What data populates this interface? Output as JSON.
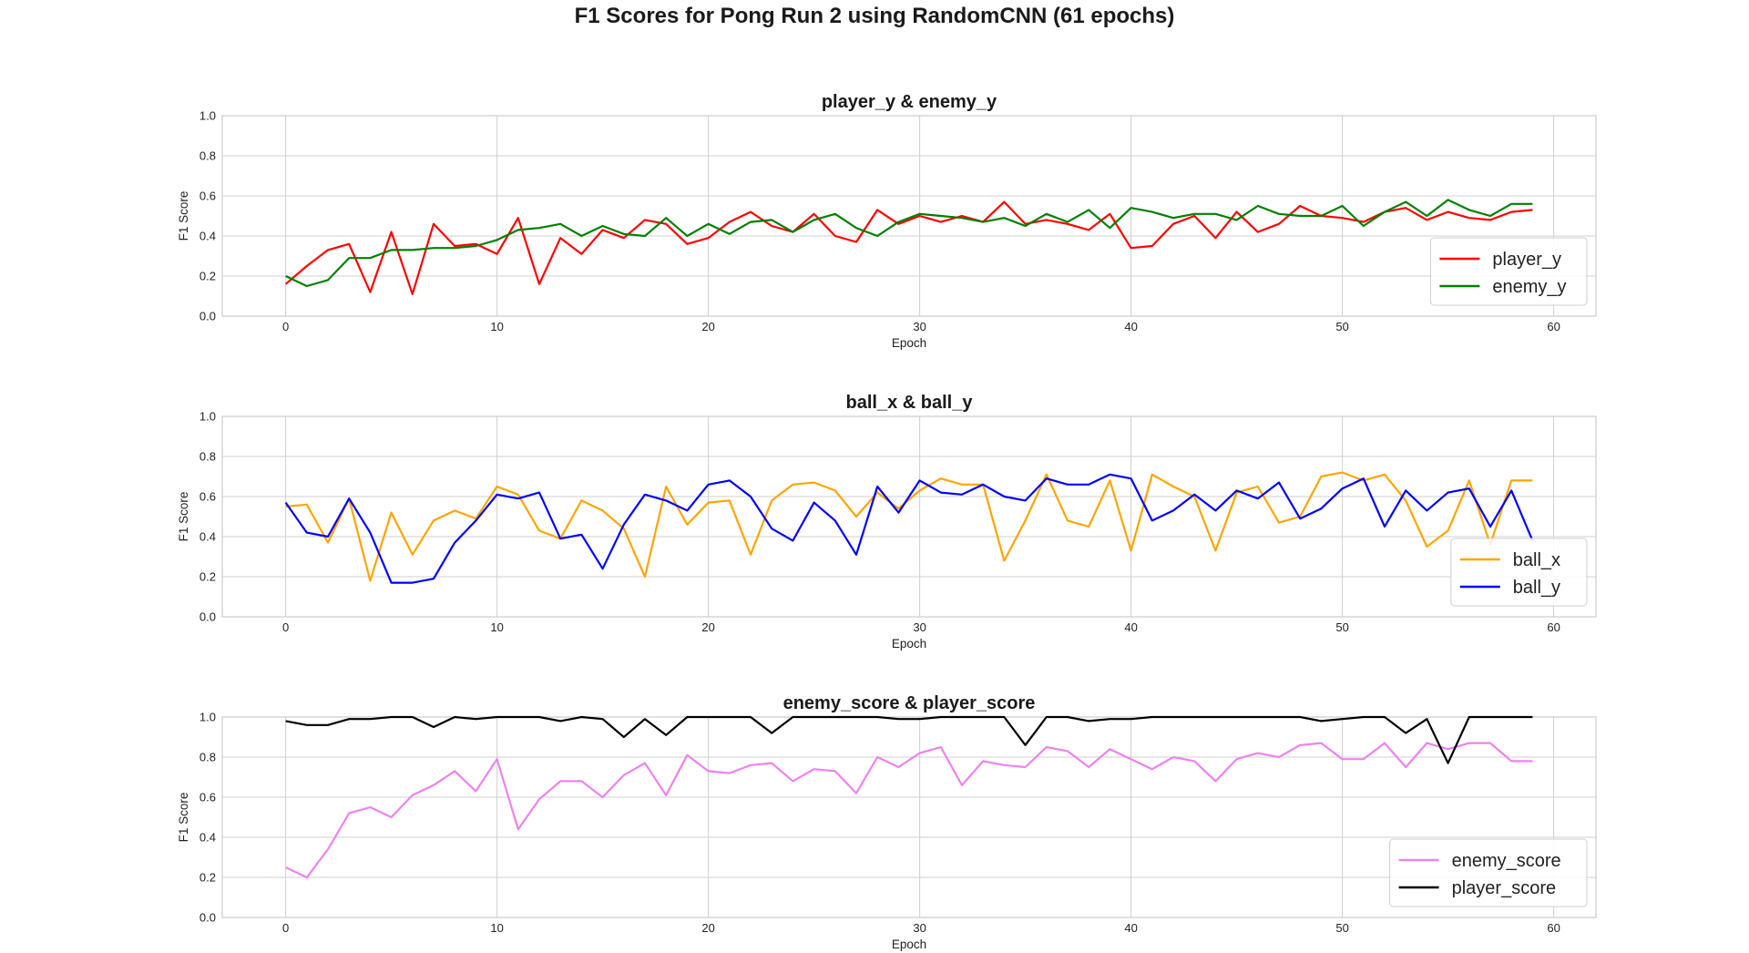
{
  "figure": {
    "suptitle": "F1 Scores for Pong Run 2 using RandomCNN (61 epochs)"
  },
  "chart_data": [
    {
      "type": "line",
      "title": "player_y & enemy_y",
      "xlabel": "Epoch",
      "ylabel": "F1 Score",
      "xlim": [
        -3,
        62
      ],
      "ylim": [
        0,
        1
      ],
      "xticks": [
        "0",
        "10",
        "20",
        "30",
        "40",
        "50",
        "60"
      ],
      "yticks": [
        "0.0",
        "0.2",
        "0.4",
        "0.6",
        "0.8",
        "1.0"
      ],
      "grid": true,
      "legend": "lower right",
      "series": [
        {
          "name": "player_y",
          "color": "#ff0000",
          "values": [
            0.16,
            0.25,
            0.33,
            0.36,
            0.12,
            0.42,
            0.11,
            0.46,
            0.35,
            0.36,
            0.31,
            0.49,
            0.16,
            0.39,
            0.31,
            0.43,
            0.39,
            0.48,
            0.46,
            0.36,
            0.39,
            0.47,
            0.52,
            0.45,
            0.42,
            0.51,
            0.4,
            0.37,
            0.53,
            0.46,
            0.5,
            0.47,
            0.5,
            0.47,
            0.57,
            0.46,
            0.48,
            0.46,
            0.43,
            0.51,
            0.34,
            0.35,
            0.46,
            0.5,
            0.39,
            0.52,
            0.42,
            0.46,
            0.55,
            0.5,
            0.49,
            0.47,
            0.52,
            0.54,
            0.48,
            0.52,
            0.49,
            0.48,
            0.52,
            0.53
          ]
        },
        {
          "name": "enemy_y",
          "color": "#008000",
          "values": [
            0.2,
            0.15,
            0.18,
            0.29,
            0.29,
            0.33,
            0.33,
            0.34,
            0.34,
            0.35,
            0.38,
            0.43,
            0.44,
            0.46,
            0.4,
            0.45,
            0.41,
            0.4,
            0.49,
            0.4,
            0.46,
            0.41,
            0.47,
            0.48,
            0.42,
            0.48,
            0.51,
            0.44,
            0.4,
            0.47,
            0.51,
            0.5,
            0.49,
            0.47,
            0.49,
            0.45,
            0.51,
            0.47,
            0.53,
            0.44,
            0.54,
            0.52,
            0.49,
            0.51,
            0.51,
            0.48,
            0.55,
            0.51,
            0.5,
            0.5,
            0.55,
            0.45,
            0.52,
            0.57,
            0.5,
            0.58,
            0.53,
            0.5,
            0.56,
            0.56
          ]
        }
      ]
    },
    {
      "type": "line",
      "title": "ball_x & ball_y",
      "xlabel": "Epoch",
      "ylabel": "F1 Score",
      "xlim": [
        -3,
        62
      ],
      "ylim": [
        0,
        1
      ],
      "xticks": [
        "0",
        "10",
        "20",
        "30",
        "40",
        "50",
        "60"
      ],
      "yticks": [
        "0.0",
        "0.2",
        "0.4",
        "0.6",
        "0.8",
        "1.0"
      ],
      "grid": true,
      "legend": "lower right",
      "series": [
        {
          "name": "ball_x",
          "color": "#ffa500",
          "values": [
            0.55,
            0.56,
            0.37,
            0.59,
            0.18,
            0.52,
            0.31,
            0.48,
            0.53,
            0.49,
            0.65,
            0.61,
            0.43,
            0.39,
            0.58,
            0.53,
            0.44,
            0.2,
            0.65,
            0.46,
            0.57,
            0.58,
            0.31,
            0.58,
            0.66,
            0.67,
            0.63,
            0.5,
            0.62,
            0.54,
            0.63,
            0.69,
            0.66,
            0.66,
            0.28,
            0.48,
            0.71,
            0.48,
            0.45,
            0.68,
            0.33,
            0.71,
            0.65,
            0.6,
            0.33,
            0.62,
            0.65,
            0.47,
            0.5,
            0.7,
            0.72,
            0.68,
            0.71,
            0.58,
            0.35,
            0.43,
            0.68,
            0.36,
            0.68,
            0.68
          ]
        },
        {
          "name": "ball_y",
          "color": "#0000ff",
          "values": [
            0.57,
            0.42,
            0.4,
            0.59,
            0.42,
            0.17,
            0.17,
            0.19,
            0.37,
            0.48,
            0.61,
            0.59,
            0.62,
            0.39,
            0.41,
            0.24,
            0.46,
            0.61,
            0.58,
            0.53,
            0.66,
            0.68,
            0.6,
            0.44,
            0.38,
            0.57,
            0.48,
            0.31,
            0.65,
            0.52,
            0.68,
            0.62,
            0.61,
            0.66,
            0.6,
            0.58,
            0.69,
            0.66,
            0.66,
            0.71,
            0.69,
            0.48,
            0.53,
            0.61,
            0.53,
            0.63,
            0.59,
            0.67,
            0.49,
            0.54,
            0.64,
            0.69,
            0.45,
            0.63,
            0.53,
            0.62,
            0.64,
            0.45,
            0.63,
            0.38
          ]
        }
      ]
    },
    {
      "type": "line",
      "title": "enemy_score & player_score",
      "xlabel": "Epoch",
      "ylabel": "F1 Score",
      "xlim": [
        -3,
        62
      ],
      "ylim": [
        0,
        1
      ],
      "xticks": [
        "0",
        "10",
        "20",
        "30",
        "40",
        "50",
        "60"
      ],
      "yticks": [
        "0.0",
        "0.2",
        "0.4",
        "0.6",
        "0.8",
        "1.0"
      ],
      "grid": true,
      "legend": "lower right",
      "series": [
        {
          "name": "enemy_score",
          "color": "#ee82ee",
          "values": [
            0.25,
            0.2,
            0.34,
            0.52,
            0.55,
            0.5,
            0.61,
            0.66,
            0.73,
            0.63,
            0.79,
            0.44,
            0.59,
            0.68,
            0.68,
            0.6,
            0.71,
            0.77,
            0.61,
            0.81,
            0.73,
            0.72,
            0.76,
            0.77,
            0.68,
            0.74,
            0.73,
            0.62,
            0.8,
            0.75,
            0.82,
            0.85,
            0.66,
            0.78,
            0.76,
            0.75,
            0.85,
            0.83,
            0.75,
            0.84,
            0.79,
            0.74,
            0.8,
            0.78,
            0.68,
            0.79,
            0.82,
            0.8,
            0.86,
            0.87,
            0.79,
            0.79,
            0.87,
            0.75,
            0.87,
            0.84,
            0.87,
            0.87,
            0.78,
            0.78
          ]
        },
        {
          "name": "player_score",
          "color": "#000000",
          "values": [
            0.98,
            0.96,
            0.96,
            0.99,
            0.99,
            1.0,
            1.0,
            0.95,
            1.0,
            0.99,
            1.0,
            1.0,
            1.0,
            0.98,
            1.0,
            0.99,
            0.9,
            0.99,
            0.91,
            1.0,
            1.0,
            1.0,
            1.0,
            0.92,
            1.0,
            1.0,
            1.0,
            1.0,
            1.0,
            0.99,
            0.99,
            1.0,
            1.0,
            1.0,
            1.0,
            0.86,
            1.0,
            1.0,
            0.98,
            0.99,
            0.99,
            1.0,
            1.0,
            1.0,
            1.0,
            1.0,
            1.0,
            1.0,
            1.0,
            0.98,
            0.99,
            1.0,
            1.0,
            0.92,
            0.99,
            0.77,
            1.0,
            1.0,
            1.0,
            1.0
          ]
        }
      ]
    }
  ]
}
